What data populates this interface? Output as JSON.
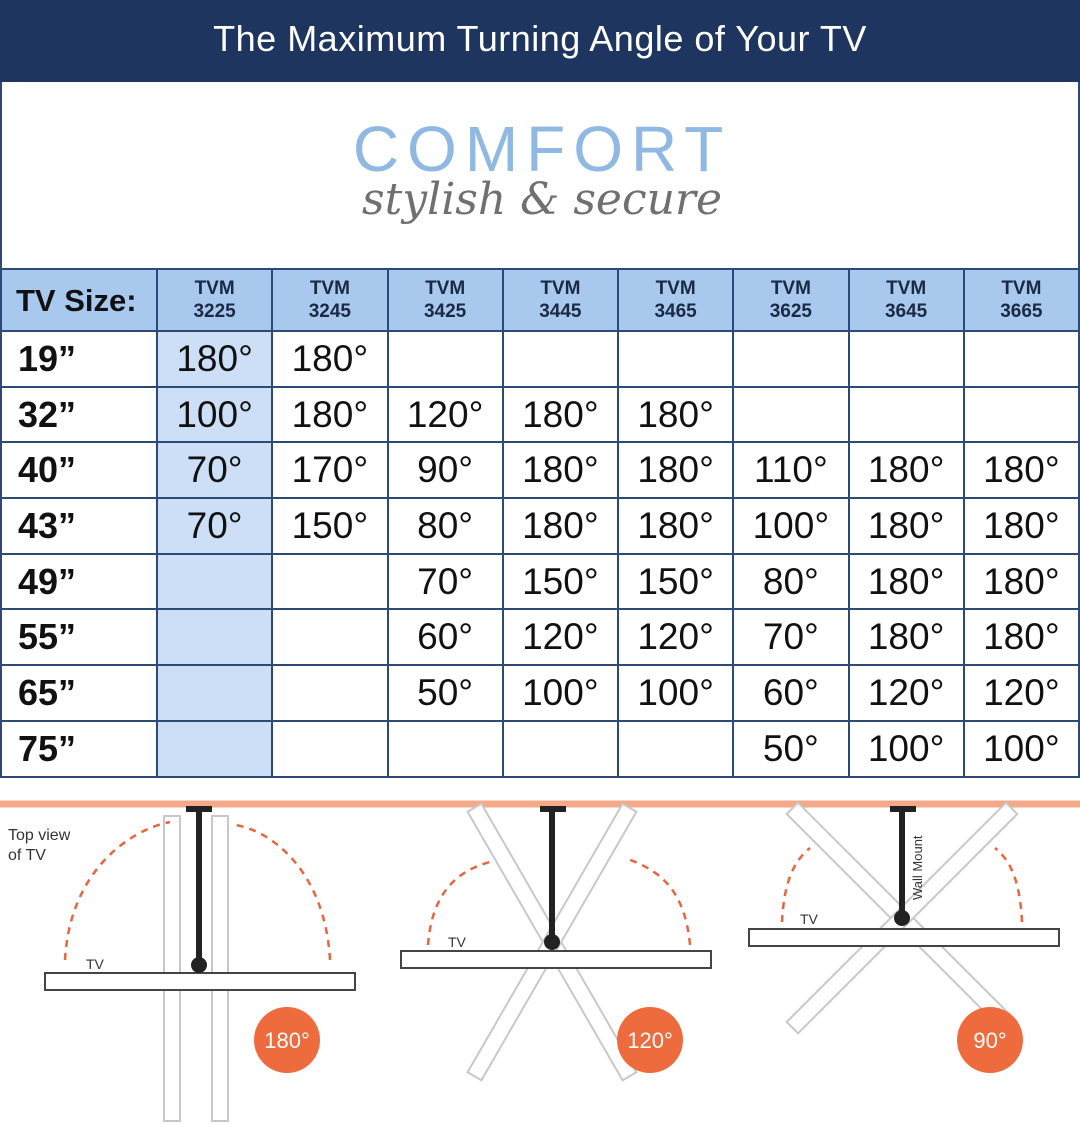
{
  "header": {
    "title": "The Maximum Turning Angle of Your TV"
  },
  "logo": {
    "brand": "COMFORT",
    "tagline": "stylish & secure"
  },
  "table": {
    "corner": "TV Size:",
    "columns": [
      "TVM\n3225",
      "TVM\n3245",
      "TVM\n3425",
      "TVM\n3445",
      "TVM\n3465",
      "TVM\n3625",
      "TVM\n3645",
      "TVM\n3665"
    ],
    "rows": [
      {
        "size": "19”",
        "cells": [
          "180°",
          "180°",
          null,
          null,
          null,
          null,
          null,
          null
        ]
      },
      {
        "size": "32”",
        "cells": [
          "100°",
          "180°",
          "120°",
          "180°",
          "180°",
          null,
          null,
          null
        ]
      },
      {
        "size": "40”",
        "cells": [
          "70°",
          "170°",
          "90°",
          "180°",
          "180°",
          "110°",
          "180°",
          "180°"
        ]
      },
      {
        "size": "43”",
        "cells": [
          "70°",
          "150°",
          "80°",
          "180°",
          "180°",
          "100°",
          "180°",
          "180°"
        ]
      },
      {
        "size": "49”",
        "cells": [
          null,
          null,
          "70°",
          "150°",
          "150°",
          "80°",
          "180°",
          "180°"
        ]
      },
      {
        "size": "55”",
        "cells": [
          null,
          null,
          "60°",
          "120°",
          "120°",
          "70°",
          "180°",
          "180°"
        ]
      },
      {
        "size": "65”",
        "cells": [
          null,
          null,
          "50°",
          "100°",
          "100°",
          "60°",
          "120°",
          "120°"
        ]
      },
      {
        "size": "75”",
        "cells": [
          null,
          null,
          null,
          null,
          null,
          "50°",
          "100°",
          "100°"
        ]
      }
    ]
  },
  "diagrams": {
    "caption": "Top view\nof TV",
    "wall_mount": "Wall Mount",
    "items": [
      {
        "tv_label": "TV",
        "angle": "180°"
      },
      {
        "tv_label": "TV",
        "angle": "120°"
      },
      {
        "tv_label": "TV",
        "angle": "90°"
      }
    ]
  }
}
